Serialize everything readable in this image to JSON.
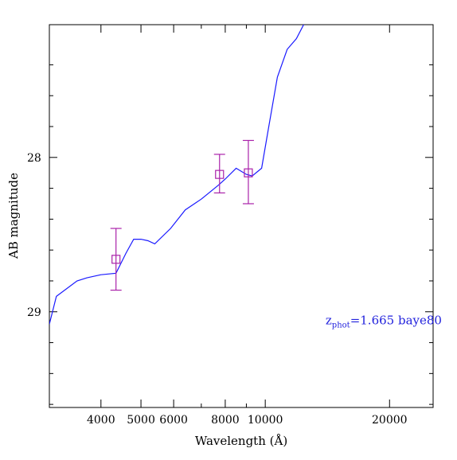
{
  "chart_data": {
    "type": "line",
    "title": "",
    "xlabel": "Wavelength (Å)",
    "ylabel": "AB magnitude",
    "x_scale": "log",
    "xlim": [
      3000,
      25500
    ],
    "ylim": [
      29.62,
      27.14
    ],
    "x_ticks": [
      {
        "value": 4000,
        "label": "4000"
      },
      {
        "value": 5000,
        "label": "5000"
      },
      {
        "value": 6000,
        "label": "6000"
      },
      {
        "value": 8000,
        "label": "8000"
      },
      {
        "value": 10000,
        "label": "10000"
      },
      {
        "value": 20000,
        "label": "20000"
      }
    ],
    "x_minor_ticks": [
      3000,
      7000,
      9000
    ],
    "y_ticks": [
      {
        "value": 28,
        "label": "28"
      },
      {
        "value": 29,
        "label": "29"
      }
    ],
    "y_minor_ticks": [
      27.4,
      27.6,
      27.8,
      28.2,
      28.4,
      28.6,
      28.8,
      29.2,
      29.4,
      29.6
    ],
    "grid": false,
    "annotation": {
      "main": "z",
      "sub": "phot",
      "rest": "=1.665 baye80",
      "color": "#2222dd",
      "x": 14000,
      "y": 29.08
    },
    "series": [
      {
        "kind": "template",
        "color": "#1a1aff",
        "x": [
          3000,
          3120,
          3500,
          3700,
          4000,
          4350,
          4600,
          4800,
          5000,
          5200,
          5400,
          5900,
          6400,
          7000,
          7700,
          8000,
          8500,
          9000,
          9300,
          9800,
          10200,
          10700,
          11300,
          11900,
          12500,
          13200,
          13700
        ],
        "y": [
          29.08,
          28.9,
          28.8,
          28.78,
          28.76,
          28.75,
          28.62,
          28.53,
          28.53,
          28.54,
          28.56,
          28.46,
          28.34,
          28.27,
          28.18,
          28.14,
          28.07,
          28.11,
          28.12,
          28.07,
          27.8,
          27.48,
          27.3,
          27.23,
          27.12,
          27.07,
          27.03
        ]
      }
    ],
    "points": [
      {
        "x": 4350,
        "y": 28.66,
        "yerr_low": 28.46,
        "yerr_high": 28.86
      },
      {
        "x": 7750,
        "y": 28.11,
        "yerr_low": 27.98,
        "yerr_high": 28.23
      },
      {
        "x": 9100,
        "y": 28.1,
        "yerr_low": 27.89,
        "yerr_high": 28.3
      }
    ],
    "point_color": "#aa22aa"
  }
}
